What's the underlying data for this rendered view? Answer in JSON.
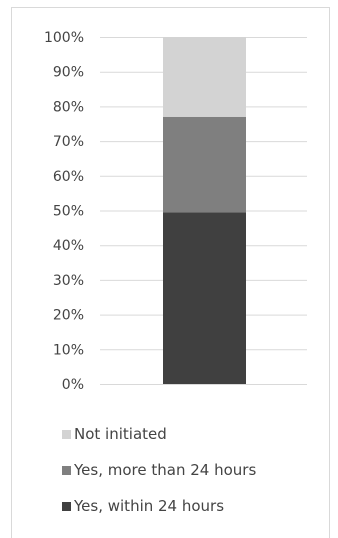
{
  "chart_data": {
    "type": "bar",
    "stacked": true,
    "orientation": "vertical",
    "categories": [
      ""
    ],
    "series": [
      {
        "name": "Yes, within 24 hours",
        "values": [
          49.5
        ],
        "color": "#404040"
      },
      {
        "name": "Yes, more than 24 hours",
        "values": [
          27.5
        ],
        "color": "#7f7f7f"
      },
      {
        "name": "Not initiated",
        "values": [
          23.0
        ],
        "color": "#d3d3d3"
      }
    ],
    "y_ticks": [
      "0%",
      "10%",
      "20%",
      "30%",
      "40%",
      "50%",
      "60%",
      "70%",
      "80%",
      "90%",
      "100%"
    ],
    "ylim": [
      0,
      100
    ],
    "grid": true,
    "legend_position": "bottom",
    "legend_order": [
      "Not initiated",
      "Yes, more than 24 hours",
      "Yes, within 24 hours"
    ],
    "gridline_color": "#d9d9d9",
    "title": "",
    "xlabel": "",
    "ylabel": ""
  }
}
